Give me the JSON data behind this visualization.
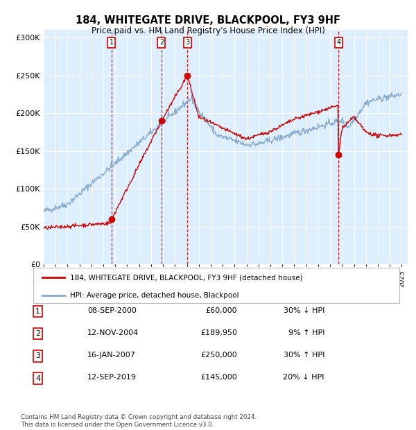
{
  "title": "184, WHITEGATE DRIVE, BLACKPOOL, FY3 9HF",
  "subtitle": "Price paid vs. HM Land Registry's House Price Index (HPI)",
  "footer": "Contains HM Land Registry data © Crown copyright and database right 2024.\nThis data is licensed under the Open Government Licence v3.0.",
  "legend1": "184, WHITEGATE DRIVE, BLACKPOOL, FY3 9HF (detached house)",
  "legend2": "HPI: Average price, detached house, Blackpool",
  "sale_color": "#cc0000",
  "hpi_color": "#88aacc",
  "background_color": "#ddeeff",
  "ylim": [
    0,
    310000
  ],
  "yticks": [
    0,
    50000,
    100000,
    150000,
    200000,
    250000,
    300000
  ],
  "ytick_labels": [
    "£0",
    "£50K",
    "£100K",
    "£150K",
    "£200K",
    "£250K",
    "£300K"
  ],
  "xlim": [
    1995,
    2025.5
  ],
  "sales": [
    {
      "label": "1",
      "date_num": 2000.69,
      "price": 60000,
      "note": "08-SEP-2000",
      "amount": "£60,000",
      "hpi_note": "30% ↓ HPI"
    },
    {
      "label": "2",
      "date_num": 2004.87,
      "price": 189950,
      "note": "12-NOV-2004",
      "amount": "£189,950",
      "hpi_note": "9% ↑ HPI"
    },
    {
      "label": "3",
      "date_num": 2007.04,
      "price": 250000,
      "note": "16-JAN-2007",
      "amount": "£250,000",
      "hpi_note": "30% ↑ HPI"
    },
    {
      "label": "4",
      "date_num": 2019.7,
      "price": 145000,
      "note": "12-SEP-2019",
      "amount": "£145,000",
      "hpi_note": "20% ↓ HPI"
    }
  ],
  "table_rows": [
    [
      "1",
      "08-SEP-2000",
      "£60,000",
      "30% ↓ HPI"
    ],
    [
      "2",
      "12-NOV-2004",
      "£189,950",
      "9% ↑ HPI"
    ],
    [
      "3",
      "16-JAN-2007",
      "£250,000",
      "30% ↑ HPI"
    ],
    [
      "4",
      "12-SEP-2019",
      "£145,000",
      "20% ↓ HPI"
    ]
  ]
}
